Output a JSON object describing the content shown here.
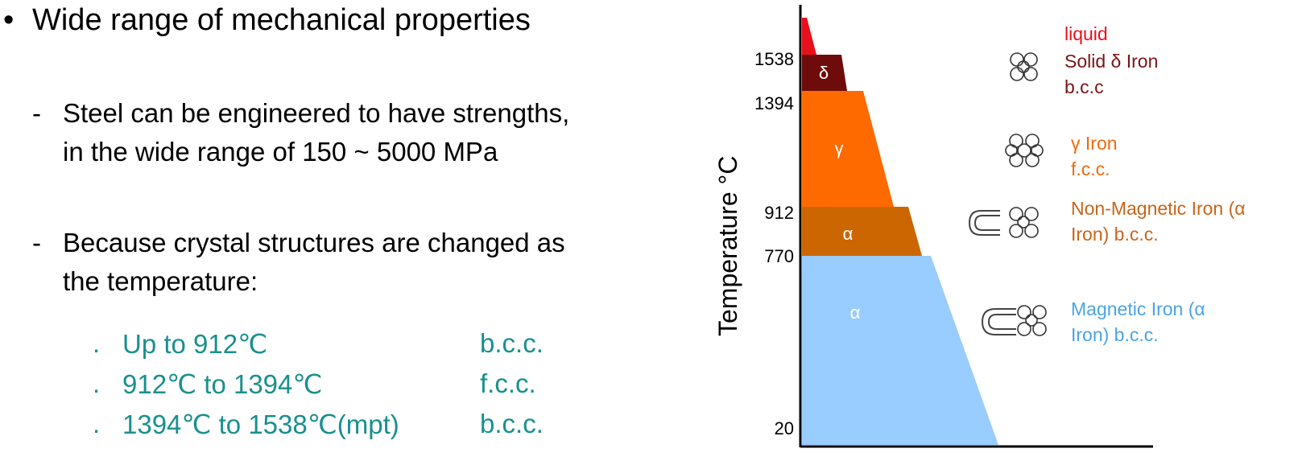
{
  "bullet": {
    "symbol": "•",
    "text": "Wide range of mechanical properties"
  },
  "subpoints": [
    {
      "dash": "-",
      "lines": [
        "Steel can be engineered to have strengths,",
        "in the wide range of 150 ~ 5000 MPa"
      ]
    },
    {
      "dash": "-",
      "lines": [
        "Because crystal structures are changed as",
        "the temperature:"
      ]
    }
  ],
  "temperature_list": [
    {
      "marker": ".",
      "range": "Up to 912℃",
      "structure": "b.c.c."
    },
    {
      "marker": ".",
      "range": "912℃ to 1394℃",
      "structure": "f.c.c."
    },
    {
      "marker": ".",
      "range": "1394℃ to 1538℃(mpt)",
      "structure": "b.c.c."
    }
  ],
  "diagram": {
    "y_axis_label": "Temperature °C",
    "ticks": [
      "1538",
      "1394",
      "912",
      "770",
      "20"
    ],
    "phase_labels": [
      "δ",
      "γ",
      "α",
      "α"
    ],
    "descriptions": [
      {
        "text": "liquid",
        "color": "#e8101c"
      },
      {
        "text": "Solid δ Iron b.c.c",
        "color": "#7a1414"
      },
      {
        "text": "γ Iron f.c.c.",
        "color": "#f26a0c"
      },
      {
        "text": "Non-Magnetic Iron (α Iron) b.c.c.",
        "color": "#c8651a"
      },
      {
        "text": "Magnetic Iron (α Iron) b.c.c.",
        "color": "#4aa3e8"
      }
    ],
    "colors": {
      "liquid": "#e8101c",
      "delta": "#6e0c0c",
      "gamma": "#ff6a00",
      "alpha_nonmag": "#cc6600",
      "alpha_mag": "#99ccff"
    }
  }
}
